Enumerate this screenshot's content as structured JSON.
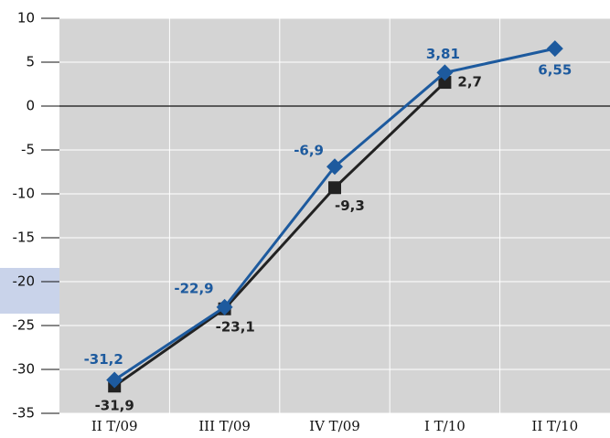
{
  "chart_data": {
    "type": "line",
    "categories": [
      "II T/09",
      "III T/09",
      "IV T/09",
      "I T/10",
      "II T/10"
    ],
    "series": [
      {
        "color": "#1d5a9e",
        "marker": "diamond",
        "values": [
          -31.2,
          -22.9,
          -6.9,
          3.81,
          6.55
        ],
        "value_labels": [
          "-31,2",
          "-22,9",
          "-6,9",
          "3,81",
          "6,55"
        ]
      },
      {
        "color": "#222222",
        "marker": "square",
        "values": [
          -31.9,
          -23.1,
          -9.3,
          2.7,
          null
        ],
        "value_labels": [
          "-31,9",
          "-23,1",
          "-9,3",
          "2,7",
          null
        ]
      }
    ],
    "ylim": [
      -35,
      10
    ],
    "yticks": [
      -35,
      -30,
      -25,
      -20,
      -15,
      -10,
      -5,
      0,
      5,
      10
    ],
    "grid": true
  }
}
